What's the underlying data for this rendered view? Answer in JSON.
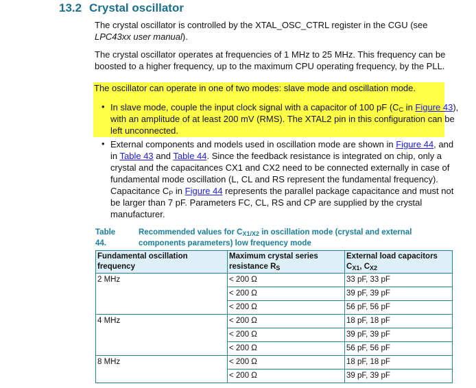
{
  "heading": {
    "number": "13.2",
    "title": "Crystal oscillator"
  },
  "para1": {
    "text": "The crystal oscillator is controlled by the XTAL_OSC_CTRL register in the CGU (see ",
    "italic": "LPC43xx user manual",
    "tail": ")."
  },
  "para2": "The crystal oscillator operates at frequencies of 1 MHz to 25 MHz. This frequency can be boosted to a higher frequency, up to the maximum CPU operating frequency, by the PLL.",
  "para3": "The oscillator can operate in one of two modes: slave mode and oscillation mode.",
  "highlight_color": "#ffff47",
  "bullet_char": "•",
  "bullet1": {
    "a": "In slave mode, couple the input clock signal with a capacitor of 100 pF (C",
    "sub": "C",
    "b": " in ",
    "link": "Figure 43",
    "c": "), with an amplitude of at least 200 mV (RMS). The XTAL2 pin in this configuration can be left unconnected."
  },
  "bullet2": {
    "a": "External components and models used in oscillation mode are shown in ",
    "link1": "Figure 44",
    "b": ", and in ",
    "link2": "Table 43",
    "c": " and ",
    "link3": "Table 44",
    "d": ". Since the feedback resistance is integrated on chip, only a crystal and the capacitances CX1 and CX2 need to be connected externally in case of fundamental mode oscillation (L, CL and RS represent the fundamental frequency). Capacitance C",
    "sub": "P",
    "e": " in ",
    "link4": "Figure 44",
    "f": " represents the parallel package capacitance and must not be larger than 7 pF. Parameters FC, CL, RS and CP are supplied by the crystal manufacturer."
  },
  "table": {
    "label": "Table 44.",
    "caption_a": "Recommended values for C",
    "caption_sub": "X1/X2",
    "caption_b": " in oscillation mode (crystal and external components parameters) low frequency mode",
    "headers": {
      "col1": "Fundamental oscillation frequency",
      "col2": "Maximum crystal series resistance R",
      "col2_sub": "S",
      "col3": "External load capacitors C",
      "col3_sub1": "X1",
      "col3_mid": ", C",
      "col3_sub2": "X2"
    },
    "rows": [
      {
        "freq": "2 MHz",
        "rs": "< 200 Ω",
        "cap": "33 pF, 33 pF"
      },
      {
        "rs": "< 200 Ω",
        "cap": "39 pF, 39 pF"
      },
      {
        "rs": "< 200 Ω",
        "cap": "56 pF, 56 pF"
      },
      {
        "freq": "4 MHz",
        "rs": "< 200 Ω",
        "cap": "18 pF, 18 pF"
      },
      {
        "rs": "< 200 Ω",
        "cap": "39 pF, 39 pF"
      },
      {
        "rs": "< 200 Ω",
        "cap": "56 pF, 56 pF"
      },
      {
        "freq": "8 MHz",
        "rs": "< 200 Ω",
        "cap": "18 pF, 18 pF"
      },
      {
        "rs": "< 200 Ω",
        "cap": "39 pF, 39 pF"
      }
    ]
  }
}
